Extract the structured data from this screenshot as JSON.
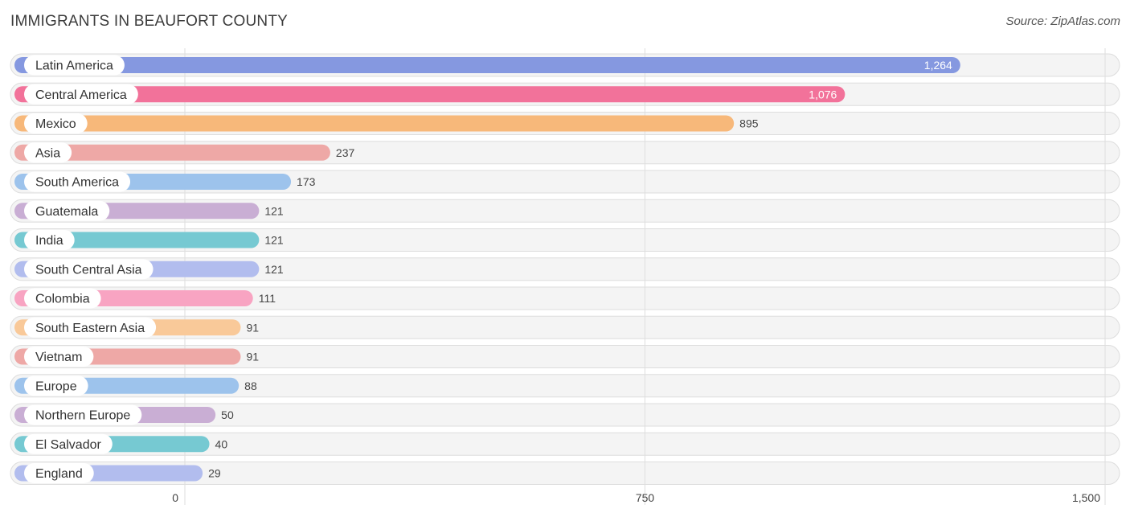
{
  "chart_data": {
    "type": "bar",
    "orientation": "horizontal",
    "title": "IMMIGRANTS IN BEAUFORT COUNTY",
    "source": "Source: ZipAtlas.com",
    "xlim": [
      0,
      1500
    ],
    "ticks": [
      {
        "value": 0,
        "label": "0"
      },
      {
        "value": 750,
        "label": "750"
      },
      {
        "value": 1500,
        "label": "1,500"
      }
    ],
    "bars": [
      {
        "category": "Latin America",
        "value": 1264,
        "label": "1,264",
        "color": "#8598e0"
      },
      {
        "category": "Central America",
        "value": 1076,
        "label": "1,076",
        "color": "#f2729a"
      },
      {
        "category": "Mexico",
        "value": 895,
        "label": "895",
        "color": "#f7b87a"
      },
      {
        "category": "Asia",
        "value": 237,
        "label": "237",
        "color": "#eea8a6"
      },
      {
        "category": "South America",
        "value": 173,
        "label": "173",
        "color": "#9dc3ec"
      },
      {
        "category": "Guatemala",
        "value": 121,
        "label": "121",
        "color": "#c9aed4"
      },
      {
        "category": "India",
        "value": 121,
        "label": "121",
        "color": "#76c9d2"
      },
      {
        "category": "South Central Asia",
        "value": 121,
        "label": "121",
        "color": "#b2bdee"
      },
      {
        "category": "Colombia",
        "value": 111,
        "label": "111",
        "color": "#f8a4c2"
      },
      {
        "category": "South Eastern Asia",
        "value": 91,
        "label": "91",
        "color": "#f9c999"
      },
      {
        "category": "Vietnam",
        "value": 91,
        "label": "91",
        "color": "#eea8a6"
      },
      {
        "category": "Europe",
        "value": 88,
        "label": "88",
        "color": "#9dc3ec"
      },
      {
        "category": "Northern Europe",
        "value": 50,
        "label": "50",
        "color": "#c9aed4"
      },
      {
        "category": "El Salvador",
        "value": 40,
        "label": "40",
        "color": "#76c9d2"
      },
      {
        "category": "England",
        "value": 29,
        "label": "29",
        "color": "#b2bdee"
      }
    ]
  }
}
